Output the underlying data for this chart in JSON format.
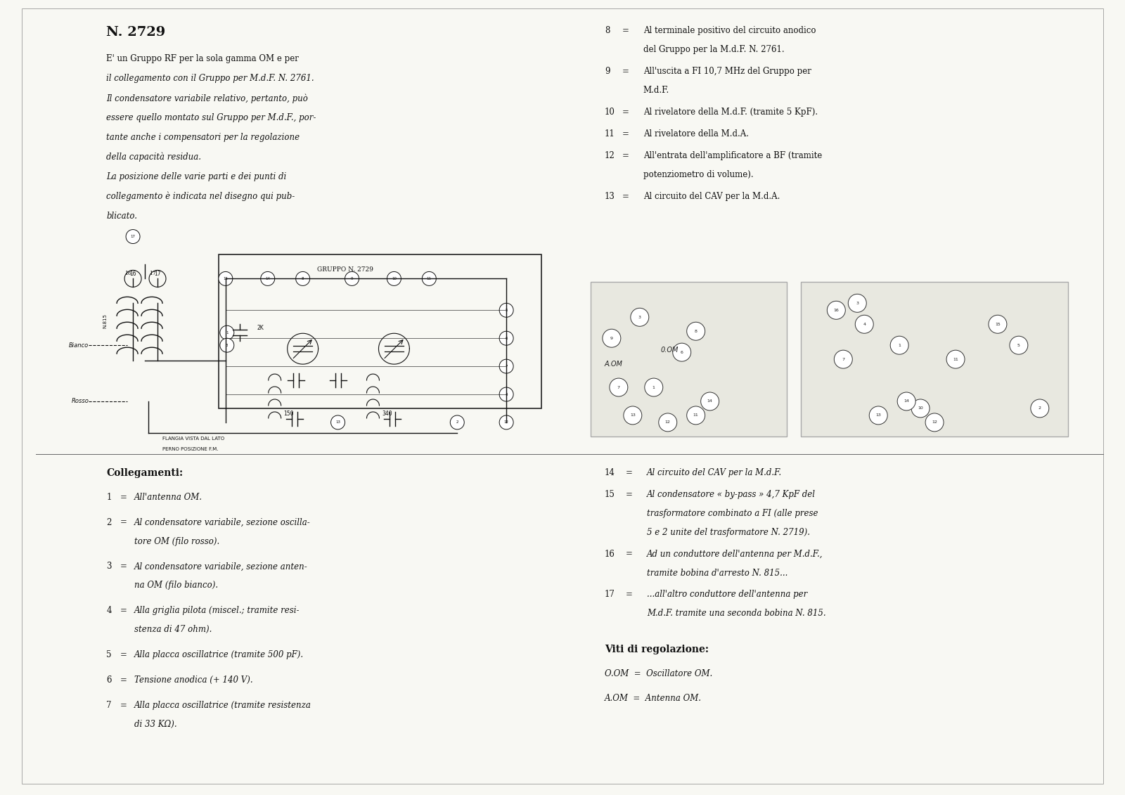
{
  "bg_color": "#f5f5f0",
  "title": "N. 2729",
  "text_color": "#1a1a1a",
  "intro_text": [
    "E' un Gruppo RF per la sola gamma OM e per",
    "il collegamento con il Gruppo per M.d.F. N. 2761.",
    "Il condensatore variabile relativo, pertanto, può",
    "essere quello montato sul Gruppo per M.d.F., por-",
    "tante anche i compensatori per la regolazione",
    "della capacità residua.",
    "La posizione delle varie parti e dei punti di",
    "collegamento è indicata nel disegno qui pub-",
    "blicato."
  ],
  "right_text_top": [
    [
      "8",
      "Al terminale positivo del circuito anodico",
      "del Gruppo per la M.d.F. N. 2761."
    ],
    [
      "9",
      "All'uscita a FI 10,7 MHz del Gruppo per",
      "M.d.F."
    ],
    [
      "10",
      "Al rivelatore della M.d.F. (tramite 5 KpF)."
    ],
    [
      "11",
      "Al rivelatore della M.d.A."
    ],
    [
      "12",
      "All'entrata dell'amplificatore a BF (tramite",
      "potenziometro di volume)."
    ],
    [
      "13",
      "Al circuito del CAV per la M.d.A."
    ]
  ],
  "collegamenti_title": "Collegamenti:",
  "collegamenti": [
    [
      "1",
      "All'antenna OM."
    ],
    [
      "2",
      "Al condensatore variabile, sezione oscilla-",
      "tore OM (filo rosso)."
    ],
    [
      "3",
      "Al condensatore variabile, sezione anten-",
      "na OM (filo bianco)."
    ],
    [
      "4",
      "Alla griglia pilota (miscel.; tramite resi-",
      "stenza di 47 ohm)."
    ],
    [
      "5",
      "Alla placca oscillatrice (tramite 500 pF)."
    ],
    [
      "6",
      "Tensione anodica (+ 140 V)."
    ],
    [
      "7",
      "Alla placca oscillatrice (tramite resistenza",
      "di 33 KΩ)."
    ]
  ],
  "right_text_bottom": [
    [
      "14",
      "Al circuito del CAV per la M.d.F."
    ],
    [
      "15",
      "Al condensatore « by-pass » 4,7 KpF del",
      "trasformatore combinato a FI (alle prese",
      "5 e 2 unite del trasformatore N. 2719)."
    ],
    [
      "16",
      "Ad un conduttore dell'antenna per M.d.F.,",
      "tramite bobina d'arresto N. 815..."
    ],
    [
      "17",
      "...all'altro conduttore dell'antenna per",
      "M.d.F. tramite una seconda bobina N. 815."
    ]
  ],
  "viti_title": "Viti di regolazione:",
  "viti": [
    "O.OM  =  Oscillatore OM.",
    "A.OM  =  Antenna OM."
  ]
}
